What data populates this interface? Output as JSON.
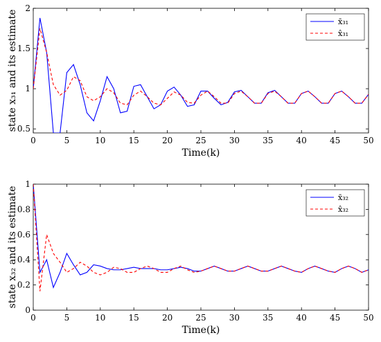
{
  "chart_data": [
    {
      "type": "line",
      "xlabel": "Time(k)",
      "ylabel": "state x_31 and its estimate",
      "xlim": [
        0,
        50
      ],
      "ylim": [
        0.45,
        2
      ],
      "xticks": [
        0,
        5,
        10,
        15,
        20,
        25,
        30,
        35,
        40,
        45,
        50
      ],
      "yticks": [
        0.5,
        1,
        1.5,
        2
      ],
      "ytick_labels": [
        "0.5",
        "1",
        "1.5",
        "2"
      ],
      "grid": false,
      "legend": "top-right",
      "series": [
        {
          "name": "x̄31",
          "color": "#0000ff",
          "style": "solid",
          "x": [
            0,
            1,
            2,
            3,
            4,
            5,
            6,
            7,
            8,
            9,
            10,
            11,
            12,
            13,
            14,
            15,
            16,
            17,
            18,
            19,
            20,
            21,
            22,
            23,
            24,
            25,
            26,
            27,
            28,
            29,
            30,
            31,
            32,
            33,
            34,
            35,
            36,
            37,
            38,
            39,
            40,
            41,
            42,
            43,
            44,
            45,
            46,
            47,
            48,
            49,
            50
          ],
          "values": [
            1.0,
            1.88,
            1.45,
            0.45,
            0.45,
            1.2,
            1.3,
            1.05,
            0.7,
            0.6,
            0.85,
            1.15,
            1.0,
            0.7,
            0.72,
            1.03,
            1.05,
            0.9,
            0.75,
            0.8,
            0.97,
            1.02,
            0.92,
            0.78,
            0.8,
            0.97,
            0.97,
            0.88,
            0.8,
            0.83,
            0.96,
            0.98,
            0.9,
            0.82,
            0.82,
            0.95,
            0.98,
            0.9,
            0.82,
            0.82,
            0.94,
            0.97,
            0.9,
            0.82,
            0.82,
            0.94,
            0.97,
            0.9,
            0.82,
            0.82,
            0.93
          ]
        },
        {
          "name": "x̂31",
          "color": "#ff0000",
          "style": "dashed",
          "x": [
            0,
            1,
            2,
            3,
            4,
            5,
            6,
            7,
            8,
            9,
            10,
            11,
            12,
            13,
            14,
            15,
            16,
            17,
            18,
            19,
            20,
            21,
            22,
            23,
            24,
            25,
            26,
            27,
            28,
            29,
            30,
            31,
            32,
            33,
            34,
            35,
            36,
            37,
            38,
            39,
            40,
            41,
            42,
            43,
            44,
            45,
            46,
            47,
            48,
            49,
            50
          ],
          "values": [
            1.0,
            1.75,
            1.45,
            1.05,
            0.92,
            0.98,
            1.15,
            1.1,
            0.9,
            0.85,
            0.9,
            1.0,
            0.95,
            0.82,
            0.8,
            0.92,
            0.97,
            0.9,
            0.82,
            0.8,
            0.88,
            0.96,
            0.92,
            0.83,
            0.82,
            0.92,
            0.97,
            0.9,
            0.82,
            0.82,
            0.94,
            0.97,
            0.9,
            0.82,
            0.82,
            0.94,
            0.97,
            0.9,
            0.82,
            0.82,
            0.94,
            0.97,
            0.9,
            0.82,
            0.82,
            0.94,
            0.97,
            0.9,
            0.82,
            0.82,
            0.93
          ]
        }
      ]
    },
    {
      "type": "line",
      "xlabel": "Time(k)",
      "ylabel": "state x_32 and its estimate",
      "xlim": [
        0,
        50
      ],
      "ylim": [
        0,
        1
      ],
      "xticks": [
        0,
        5,
        10,
        15,
        20,
        25,
        30,
        35,
        40,
        45,
        50
      ],
      "yticks": [
        0,
        0.2,
        0.4,
        0.6,
        0.8,
        1
      ],
      "ytick_labels": [
        "0",
        "0.2",
        "0.4",
        "0.6",
        "0.8",
        "1"
      ],
      "grid": false,
      "legend": "top-right",
      "series": [
        {
          "name": "x̄32",
          "color": "#0000ff",
          "style": "solid",
          "x": [
            0,
            1,
            2,
            3,
            4,
            5,
            6,
            7,
            8,
            9,
            10,
            11,
            12,
            13,
            14,
            15,
            16,
            17,
            18,
            19,
            20,
            21,
            22,
            23,
            24,
            25,
            26,
            27,
            28,
            29,
            30,
            31,
            32,
            33,
            34,
            35,
            36,
            37,
            38,
            39,
            40,
            41,
            42,
            43,
            44,
            45,
            46,
            47,
            48,
            49,
            50
          ],
          "values": [
            1.0,
            0.3,
            0.4,
            0.18,
            0.3,
            0.45,
            0.36,
            0.28,
            0.3,
            0.36,
            0.35,
            0.33,
            0.32,
            0.32,
            0.33,
            0.34,
            0.33,
            0.33,
            0.33,
            0.32,
            0.32,
            0.33,
            0.34,
            0.33,
            0.31,
            0.31,
            0.33,
            0.35,
            0.33,
            0.31,
            0.31,
            0.33,
            0.35,
            0.33,
            0.31,
            0.31,
            0.33,
            0.35,
            0.33,
            0.31,
            0.3,
            0.33,
            0.35,
            0.33,
            0.31,
            0.3,
            0.33,
            0.35,
            0.33,
            0.3,
            0.32
          ]
        },
        {
          "name": "x̂32",
          "color": "#ff0000",
          "style": "dashed",
          "x": [
            0,
            1,
            2,
            3,
            4,
            5,
            6,
            7,
            8,
            9,
            10,
            11,
            12,
            13,
            14,
            15,
            16,
            17,
            18,
            19,
            20,
            21,
            22,
            23,
            24,
            25,
            26,
            27,
            28,
            29,
            30,
            31,
            32,
            33,
            34,
            35,
            36,
            37,
            38,
            39,
            40,
            41,
            42,
            43,
            44,
            45,
            46,
            47,
            48,
            49,
            50
          ],
          "values": [
            1.0,
            0.15,
            0.6,
            0.45,
            0.38,
            0.3,
            0.33,
            0.38,
            0.35,
            0.3,
            0.28,
            0.3,
            0.34,
            0.33,
            0.3,
            0.3,
            0.33,
            0.35,
            0.33,
            0.3,
            0.3,
            0.33,
            0.35,
            0.32,
            0.3,
            0.31,
            0.33,
            0.35,
            0.33,
            0.31,
            0.31,
            0.33,
            0.35,
            0.33,
            0.31,
            0.31,
            0.33,
            0.35,
            0.33,
            0.31,
            0.3,
            0.33,
            0.35,
            0.33,
            0.31,
            0.3,
            0.33,
            0.35,
            0.33,
            0.3,
            0.32
          ]
        }
      ]
    }
  ]
}
